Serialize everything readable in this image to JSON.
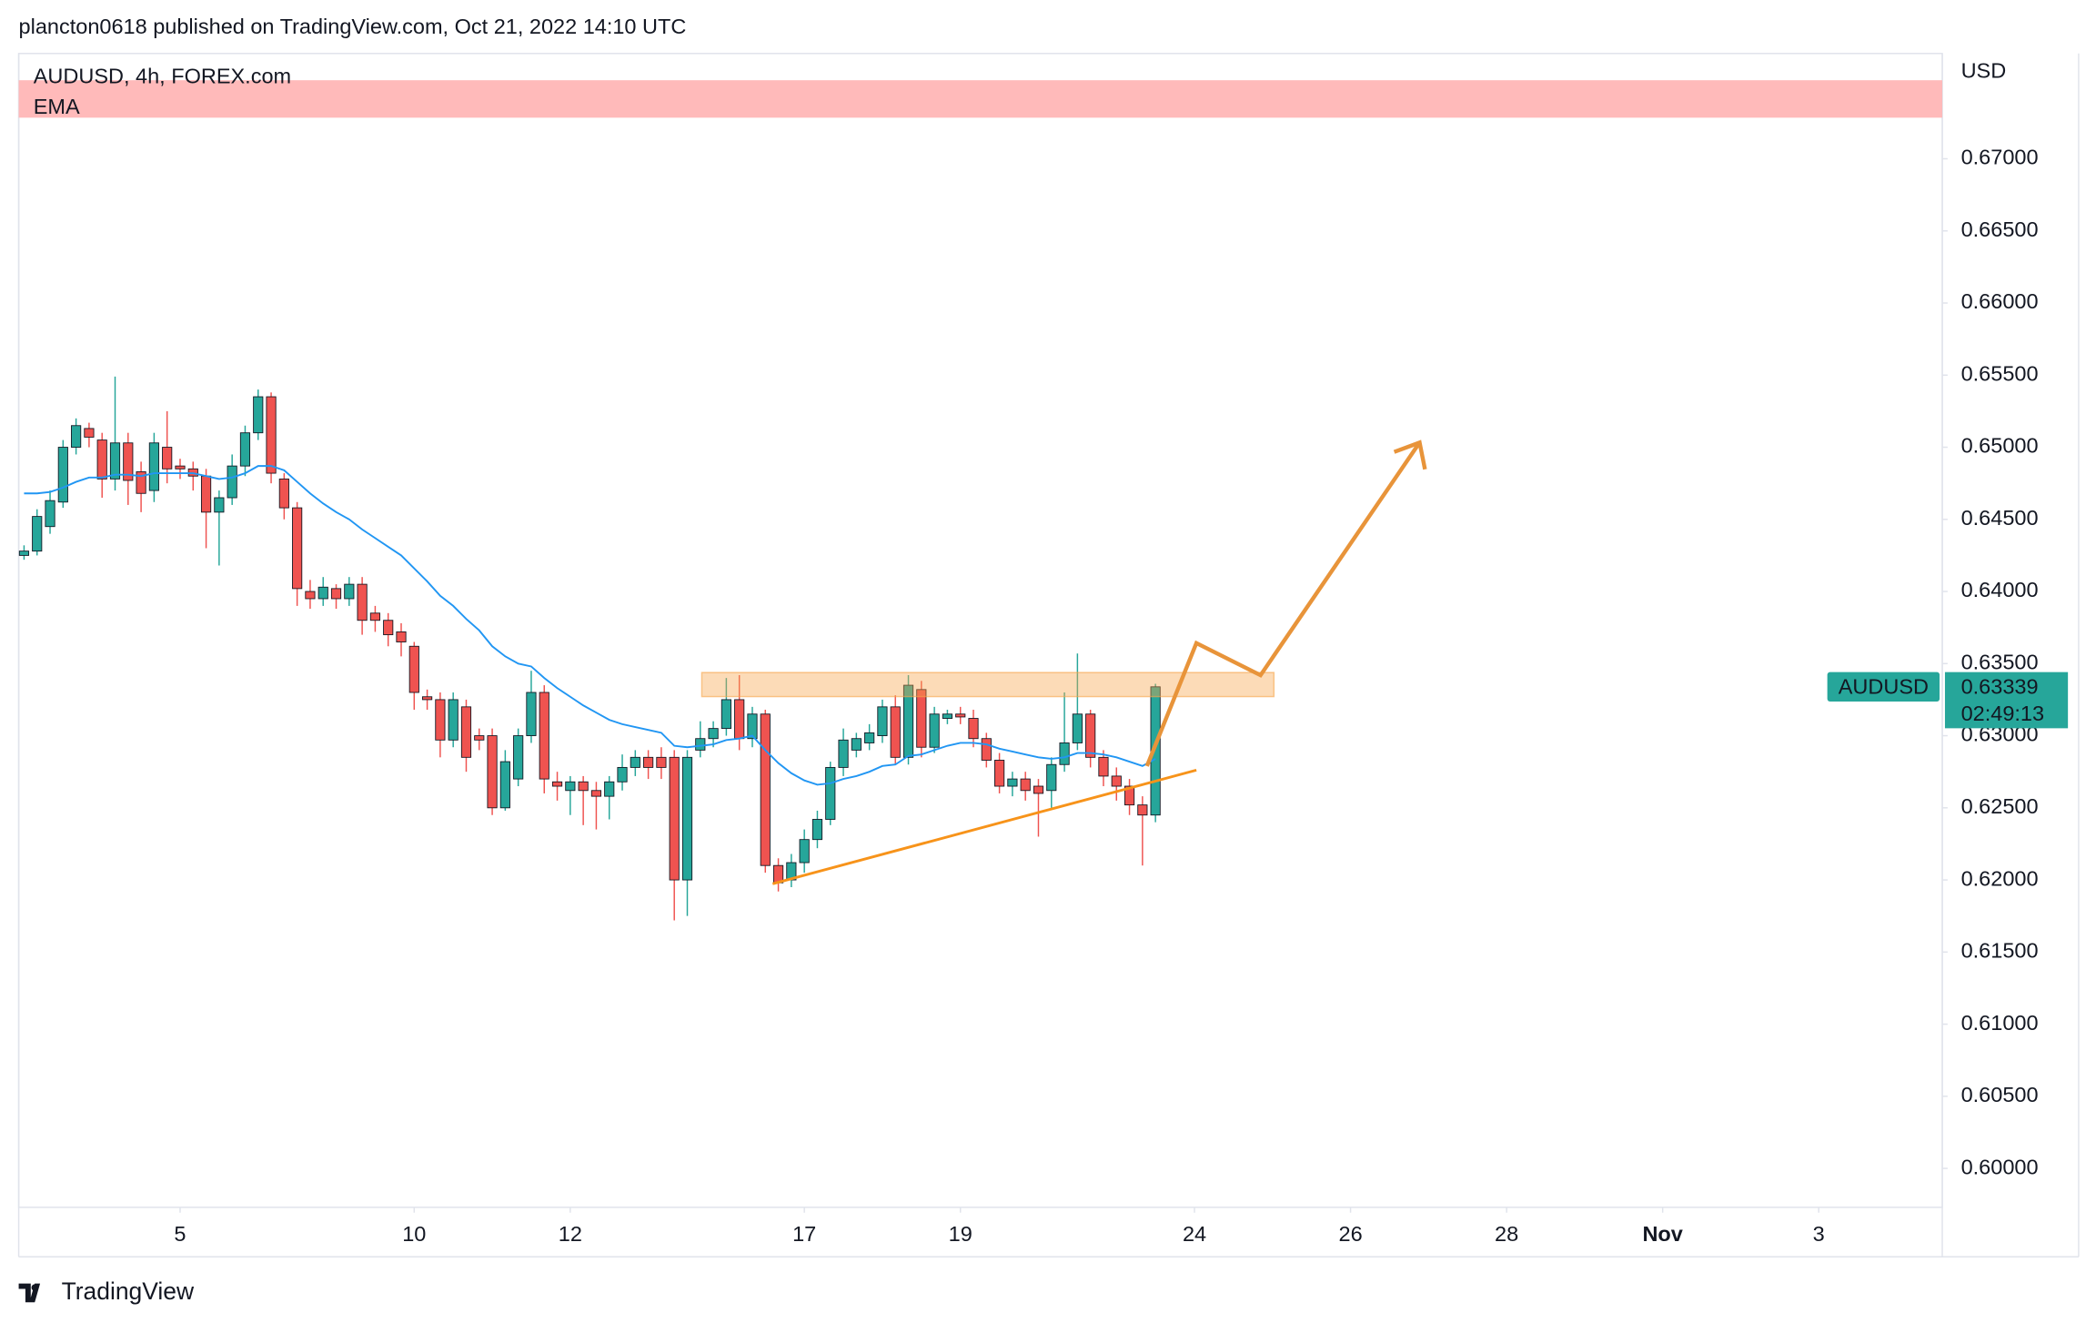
{
  "header": "plancton0618 published on TradingView.com, Oct 21, 2022 14:10 UTC",
  "footer": "TradingView",
  "chart_data": {
    "type": "candlestick",
    "title": "AUDUSD, 4h, FOREX.com",
    "indicator": "EMA",
    "y_axis_label": "USD",
    "up_color": "#26a69a",
    "down_color": "#ef5350",
    "ema_color": "#2196f3",
    "grid": false,
    "x": [
      0,
      1,
      2,
      3,
      4,
      5,
      6,
      7,
      8,
      9,
      10,
      11,
      12,
      13,
      14,
      15,
      16,
      17,
      18,
      19,
      20,
      21,
      22,
      23,
      24,
      25,
      26,
      27,
      28,
      29,
      30,
      31,
      32,
      33,
      34,
      35,
      36,
      37,
      38,
      39,
      40,
      41,
      42,
      43,
      44,
      45,
      46,
      47,
      48,
      49,
      50,
      51,
      52,
      53,
      54,
      55,
      56,
      57,
      58,
      59,
      60,
      61,
      62,
      63,
      64,
      65,
      66,
      67,
      68,
      69,
      70,
      71,
      72,
      73,
      74,
      75,
      76,
      77,
      78,
      79,
      80,
      81,
      82,
      83,
      84,
      85,
      86,
      87
    ],
    "open": [
      0.6425,
      0.6428,
      0.6445,
      0.6462,
      0.65,
      0.6513,
      0.6505,
      0.6478,
      0.6503,
      0.6483,
      0.647,
      0.65,
      0.6487,
      0.6485,
      0.648,
      0.6455,
      0.6465,
      0.6487,
      0.651,
      0.6535,
      0.6478,
      0.6458,
      0.64,
      0.6395,
      0.6402,
      0.6395,
      0.6405,
      0.6385,
      0.638,
      0.6372,
      0.6362,
      0.6327,
      0.6325,
      0.6297,
      0.632,
      0.63,
      0.63,
      0.625,
      0.627,
      0.63,
      0.633,
      0.6268,
      0.6262,
      0.6268,
      0.6262,
      0.6258,
      0.6268,
      0.6278,
      0.6285,
      0.6285,
      0.6285,
      0.62,
      0.629,
      0.6298,
      0.6305,
      0.6325,
      0.6298,
      0.6315,
      0.621,
      0.62,
      0.6212,
      0.6228,
      0.6242,
      0.6278,
      0.629,
      0.6295,
      0.63,
      0.632,
      0.6285,
      0.6332,
      0.6292,
      0.6312,
      0.6315,
      0.6312,
      0.6298,
      0.6283,
      0.6265,
      0.627,
      0.6265,
      0.6262,
      0.628,
      0.6295,
      0.6315,
      0.6285,
      0.6272,
      0.6265,
      0.6252,
      0.6245
    ],
    "high": [
      0.6432,
      0.6457,
      0.647,
      0.6505,
      0.652,
      0.6517,
      0.651,
      0.6549,
      0.651,
      0.649,
      0.651,
      0.6525,
      0.6492,
      0.649,
      0.6485,
      0.647,
      0.6495,
      0.6515,
      0.654,
      0.6538,
      0.6482,
      0.6462,
      0.6408,
      0.641,
      0.6405,
      0.641,
      0.641,
      0.639,
      0.6385,
      0.6378,
      0.6365,
      0.6332,
      0.633,
      0.633,
      0.6325,
      0.6305,
      0.6305,
      0.629,
      0.6305,
      0.6345,
      0.6335,
      0.6275,
      0.6272,
      0.6272,
      0.6268,
      0.6272,
      0.6287,
      0.629,
      0.629,
      0.6292,
      0.629,
      0.629,
      0.631,
      0.631,
      0.634,
      0.6342,
      0.632,
      0.6318,
      0.6215,
      0.6218,
      0.6235,
      0.6248,
      0.6282,
      0.6305,
      0.6302,
      0.6308,
      0.6325,
      0.6328,
      0.6342,
      0.6338,
      0.632,
      0.6318,
      0.632,
      0.6318,
      0.6302,
      0.6288,
      0.6275,
      0.6275,
      0.627,
      0.6285,
      0.633,
      0.6357,
      0.6318,
      0.629,
      0.6278,
      0.627,
      0.6258,
      0.6336
    ],
    "low": [
      0.6422,
      0.6425,
      0.644,
      0.6458,
      0.6495,
      0.65,
      0.6465,
      0.647,
      0.646,
      0.6455,
      0.6462,
      0.6475,
      0.6478,
      0.647,
      0.643,
      0.6418,
      0.646,
      0.648,
      0.6505,
      0.6475,
      0.645,
      0.639,
      0.6388,
      0.639,
      0.6388,
      0.639,
      0.637,
      0.6372,
      0.6362,
      0.6355,
      0.6318,
      0.6318,
      0.6285,
      0.6292,
      0.6275,
      0.629,
      0.6245,
      0.6248,
      0.6265,
      0.6295,
      0.626,
      0.6255,
      0.6245,
      0.6238,
      0.6235,
      0.6242,
      0.6262,
      0.6272,
      0.627,
      0.627,
      0.6172,
      0.6175,
      0.6285,
      0.6292,
      0.63,
      0.629,
      0.6292,
      0.6205,
      0.6192,
      0.6195,
      0.6205,
      0.6222,
      0.6238,
      0.6272,
      0.6285,
      0.629,
      0.6295,
      0.628,
      0.628,
      0.6285,
      0.6288,
      0.6308,
      0.6308,
      0.6292,
      0.6278,
      0.626,
      0.6258,
      0.6255,
      0.623,
      0.625,
      0.6275,
      0.629,
      0.6278,
      0.6265,
      0.6255,
      0.6245,
      0.621,
      0.624
    ],
    "close": [
      0.6428,
      0.6452,
      0.6463,
      0.65,
      0.6515,
      0.6507,
      0.6478,
      0.6503,
      0.6477,
      0.6468,
      0.6503,
      0.6485,
      0.6485,
      0.648,
      0.6455,
      0.6465,
      0.6487,
      0.651,
      0.6535,
      0.6482,
      0.6458,
      0.6402,
      0.6395,
      0.6403,
      0.6395,
      0.6405,
      0.638,
      0.638,
      0.637,
      0.6365,
      0.633,
      0.6325,
      0.6297,
      0.6325,
      0.6285,
      0.6297,
      0.625,
      0.6282,
      0.63,
      0.633,
      0.627,
      0.6265,
      0.6268,
      0.6262,
      0.6258,
      0.6268,
      0.6278,
      0.6285,
      0.6278,
      0.6278,
      0.62,
      0.6285,
      0.6298,
      0.6305,
      0.6325,
      0.6298,
      0.6315,
      0.621,
      0.6198,
      0.6212,
      0.6228,
      0.6242,
      0.6278,
      0.6297,
      0.6298,
      0.6302,
      0.632,
      0.6285,
      0.6335,
      0.6292,
      0.6315,
      0.6315,
      0.6313,
      0.6298,
      0.6283,
      0.6265,
      0.627,
      0.6262,
      0.626,
      0.628,
      0.6295,
      0.6315,
      0.6285,
      0.6272,
      0.6265,
      0.6252,
      0.6245,
      0.63339
    ],
    "ema": [
      0.6468,
      0.6468,
      0.6469,
      0.6472,
      0.6476,
      0.6479,
      0.6479,
      0.6481,
      0.6481,
      0.648,
      0.6482,
      0.6482,
      0.6482,
      0.6482,
      0.648,
      0.6478,
      0.6479,
      0.6482,
      0.6487,
      0.6487,
      0.6484,
      0.6476,
      0.6468,
      0.6461,
      0.6455,
      0.645,
      0.6443,
      0.6437,
      0.6431,
      0.6425,
      0.6416,
      0.6407,
      0.6397,
      0.639,
      0.6381,
      0.6373,
      0.6362,
      0.6355,
      0.635,
      0.6348,
      0.634,
      0.6333,
      0.6327,
      0.6321,
      0.6316,
      0.6311,
      0.6308,
      0.6306,
      0.6304,
      0.6302,
      0.6293,
      0.6292,
      0.6293,
      0.6294,
      0.6297,
      0.6298,
      0.63,
      0.629,
      0.6281,
      0.6274,
      0.6269,
      0.6266,
      0.6267,
      0.627,
      0.6272,
      0.6275,
      0.6279,
      0.628,
      0.6286,
      0.6287,
      0.629,
      0.6293,
      0.6295,
      0.6295,
      0.6294,
      0.6291,
      0.6289,
      0.6287,
      0.6285,
      0.6284,
      0.6285,
      0.6288,
      0.6288,
      0.6287,
      0.6285,
      0.6282,
      0.6279,
      0.6284
    ],
    "xlim": [
      -0.41,
      147.5
    ],
    "xticks": [
      {
        "value": 12,
        "label": "5"
      },
      {
        "value": 30,
        "label": "10"
      },
      {
        "value": 42,
        "label": "12"
      },
      {
        "value": 60,
        "label": "17"
      },
      {
        "value": 72,
        "label": "19"
      },
      {
        "value": 90,
        "label": "24"
      },
      {
        "value": 102,
        "label": "26"
      },
      {
        "value": 114,
        "label": "28"
      },
      {
        "value": 126,
        "label": "Nov"
      },
      {
        "value": 138,
        "label": "3"
      }
    ],
    "ylim": [
      0.5973,
      0.6773
    ],
    "yticks": [
      {
        "value": 0.6,
        "label": "0.60000"
      },
      {
        "value": 0.605,
        "label": "0.60500"
      },
      {
        "value": 0.61,
        "label": "0.61000"
      },
      {
        "value": 0.615,
        "label": "0.61500"
      },
      {
        "value": 0.62,
        "label": "0.62000"
      },
      {
        "value": 0.625,
        "label": "0.62500"
      },
      {
        "value": 0.63,
        "label": "0.63000"
      },
      {
        "value": 0.635,
        "label": "0.63500"
      },
      {
        "value": 0.64,
        "label": "0.64000"
      },
      {
        "value": 0.645,
        "label": "0.64500"
      },
      {
        "value": 0.65,
        "label": "0.65000"
      },
      {
        "value": 0.655,
        "label": "0.65500"
      },
      {
        "value": 0.66,
        "label": "0.66000"
      },
      {
        "value": 0.665,
        "label": "0.66500"
      },
      {
        "value": 0.67,
        "label": "0.67000"
      }
    ],
    "price_tag": {
      "name": "AUDUSD",
      "value": 0.63339,
      "countdown": "02:49:13"
    }
  }
}
